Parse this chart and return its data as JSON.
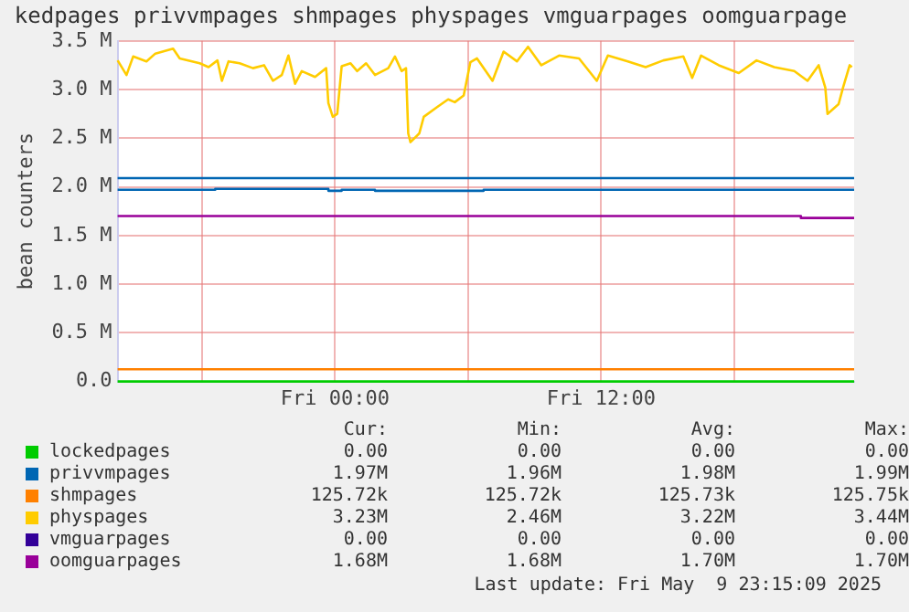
{
  "chart_data": {
    "type": "line",
    "title": "kedpages privvmpages shmpages physpages vmguarpages oomguarpage",
    "ylabel": "bean counters",
    "xlim": [
      "2025-05-08T14:12",
      "2025-05-09T23:24"
    ],
    "xticks": [
      {
        "value": "2025-05-08T18:00",
        "label": null
      },
      {
        "value": "2025-05-09T00:00",
        "label": "Fri 00:00"
      },
      {
        "value": "2025-05-09T06:00",
        "label": null
      },
      {
        "value": "2025-05-09T12:00",
        "label": "Fri 12:00"
      },
      {
        "value": "2025-05-09T18:00",
        "label": null
      }
    ],
    "ylim": [
      0,
      3.5
    ],
    "yticks": [
      {
        "value": 0,
        "label": "0.0"
      },
      {
        "value": 0.5,
        "label": "0.5 M"
      },
      {
        "value": 1,
        "label": "1.0 M"
      },
      {
        "value": 1.5,
        "label": "1.5 M"
      },
      {
        "value": 2,
        "label": "2.0 M"
      },
      {
        "value": 2.5,
        "label": "2.5 M"
      },
      {
        "value": 3,
        "label": "3.0 M"
      },
      {
        "value": 3.5,
        "label": "3.5 M"
      }
    ],
    "grid": true,
    "legend": "bottom",
    "marker": "none",
    "line_style": "solid",
    "ref_lines": [
      {
        "axis": "y",
        "value": 2.09,
        "color": "#0066b3"
      }
    ],
    "series": [
      {
        "name": "lockedpages",
        "color": "#00cc00",
        "x": [
          "2025-05-08T14:12",
          "2025-05-09T23:24"
        ],
        "values": [
          0,
          0
        ]
      },
      {
        "name": "privvmpages",
        "color": "#0066b3",
        "x": [
          "2025-05-08T14:12",
          "2025-05-08T18:36",
          "2025-05-08T18:36",
          "2025-05-08T23:42",
          "2025-05-08T23:42",
          "2025-05-09T00:18",
          "2025-05-09T00:18",
          "2025-05-09T01:48",
          "2025-05-09T01:48",
          "2025-05-09T06:42",
          "2025-05-09T06:42",
          "2025-05-09T23:24"
        ],
        "values": [
          1.97,
          1.97,
          1.98,
          1.98,
          1.96,
          1.96,
          1.97,
          1.97,
          1.96,
          1.96,
          1.97,
          1.97
        ]
      },
      {
        "name": "shmpages",
        "color": "#ff8000",
        "x": [
          "2025-05-08T14:12",
          "2025-05-09T23:24"
        ],
        "values": [
          0.126,
          0.126
        ]
      },
      {
        "name": "physpages",
        "color": "#ffcc00",
        "x": [
          "2025-05-08T14:12",
          "2025-05-08T14:36",
          "2025-05-08T14:54",
          "2025-05-08T15:30",
          "2025-05-08T15:54",
          "2025-05-08T16:42",
          "2025-05-08T17:00",
          "2025-05-08T17:54",
          "2025-05-08T18:18",
          "2025-05-08T18:42",
          "2025-05-08T18:54",
          "2025-05-08T19:12",
          "2025-05-08T19:42",
          "2025-05-08T20:18",
          "2025-05-08T20:48",
          "2025-05-08T21:12",
          "2025-05-08T21:36",
          "2025-05-08T21:54",
          "2025-05-08T22:12",
          "2025-05-08T22:30",
          "2025-05-08T23:06",
          "2025-05-08T23:36",
          "2025-05-08T23:42",
          "2025-05-08T23:54",
          "2025-05-09T00:06",
          "2025-05-09T00:18",
          "2025-05-09T00:42",
          "2025-05-09T01:00",
          "2025-05-09T01:24",
          "2025-05-09T01:48",
          "2025-05-09T02:24",
          "2025-05-09T02:42",
          "2025-05-09T03:00",
          "2025-05-09T03:12",
          "2025-05-09T03:18",
          "2025-05-09T03:24",
          "2025-05-09T03:48",
          "2025-05-09T04:00",
          "2025-05-09T04:36",
          "2025-05-09T05:06",
          "2025-05-09T05:24",
          "2025-05-09T05:48",
          "2025-05-09T06:06",
          "2025-05-09T06:24",
          "2025-05-09T07:06",
          "2025-05-09T07:36",
          "2025-05-09T08:12",
          "2025-05-09T08:42",
          "2025-05-09T09:18",
          "2025-05-09T10:06",
          "2025-05-09T11:00",
          "2025-05-09T11:48",
          "2025-05-09T12:18",
          "2025-05-09T13:12",
          "2025-05-09T14:00",
          "2025-05-09T14:48",
          "2025-05-09T15:42",
          "2025-05-09T16:06",
          "2025-05-09T16:30",
          "2025-05-09T17:18",
          "2025-05-09T18:12",
          "2025-05-09T19:00",
          "2025-05-09T19:48",
          "2025-05-09T20:42",
          "2025-05-09T21:18",
          "2025-05-09T21:48",
          "2025-05-09T22:06",
          "2025-05-09T22:12",
          "2025-05-09T22:42",
          "2025-05-09T22:54",
          "2025-05-09T23:12",
          "2025-05-09T23:18"
        ],
        "values": [
          3.3,
          3.15,
          3.34,
          3.29,
          3.37,
          3.42,
          3.32,
          3.27,
          3.23,
          3.3,
          3.09,
          3.29,
          3.27,
          3.22,
          3.25,
          3.09,
          3.15,
          3.35,
          3.06,
          3.19,
          3.13,
          3.22,
          2.86,
          2.72,
          2.75,
          3.24,
          3.27,
          3.19,
          3.27,
          3.15,
          3.22,
          3.34,
          3.19,
          3.22,
          2.55,
          2.46,
          2.55,
          2.72,
          2.82,
          2.9,
          2.87,
          2.94,
          3.28,
          3.32,
          3.09,
          3.39,
          3.29,
          3.44,
          3.25,
          3.35,
          3.32,
          3.09,
          3.35,
          3.29,
          3.23,
          3.3,
          3.34,
          3.12,
          3.35,
          3.25,
          3.17,
          3.3,
          3.23,
          3.19,
          3.09,
          3.25,
          3.02,
          2.75,
          2.85,
          3.02,
          3.25,
          3.23
        ]
      },
      {
        "name": "vmguarpages",
        "color": "#330099"
      },
      {
        "name": "oomguarpages",
        "color": "#990099",
        "x": [
          "2025-05-08T14:12",
          "2025-05-09T21:00",
          "2025-05-09T21:00",
          "2025-05-09T23:24"
        ],
        "values": [
          1.7,
          1.7,
          1.68,
          1.68
        ]
      }
    ],
    "annotations": [
      "Cur:",
      "Min:",
      "Avg:",
      "Max:",
      "0.00",
      "0.00",
      "0.00",
      "0.00",
      "1.97M",
      "1.96M",
      "1.98M",
      "1.99M",
      "125.72k",
      "125.72k",
      "125.73k",
      "125.75k",
      "3.23M",
      "2.46M",
      "3.22M",
      "3.44M",
      "0.00",
      "0.00",
      "0.00",
      "0.00",
      "1.68M",
      "1.68M",
      "1.70M",
      "1.70M",
      "Last update: Fri May  9 23:15:09 2025"
    ]
  }
}
